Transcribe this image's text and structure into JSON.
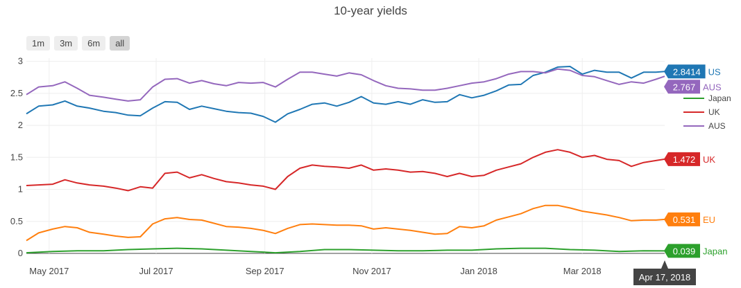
{
  "chart_data": {
    "type": "line",
    "title": "10-year yields",
    "ylim": [
      0,
      3.05
    ],
    "y_ticks": [
      "0",
      "0.5",
      "1",
      "1.5",
      "2",
      "2.5",
      "3"
    ],
    "x_range": [
      "2017-04-18",
      "2018-04-17"
    ],
    "x_ticks": [
      {
        "date": "2017-05-01",
        "label": "May 2017"
      },
      {
        "date": "2017-07-01",
        "label": "Jul 2017"
      },
      {
        "date": "2017-09-01",
        "label": "Sep 2017"
      },
      {
        "date": "2017-11-01",
        "label": "Nov 2017"
      },
      {
        "date": "2018-01-01",
        "label": "Jan 2018"
      },
      {
        "date": "2018-03-01",
        "label": "Mar 2018"
      }
    ],
    "grid": true,
    "legend": {
      "position": "right",
      "entries": [
        "Japan",
        "UK",
        "AUS"
      ]
    },
    "range_selector": [
      "1m",
      "3m",
      "6m",
      "all"
    ],
    "range_selector_active": "all",
    "hover_date": "Apr 17, 2018",
    "series": [
      {
        "name": "US",
        "color": "#1f77b4",
        "last_value": "2.8414",
        "show_in_legend": false,
        "points": [
          [
            "2017-04-18",
            2.18
          ],
          [
            "2017-04-25",
            2.3
          ],
          [
            "2017-05-03",
            2.32
          ],
          [
            "2017-05-10",
            2.38
          ],
          [
            "2017-05-17",
            2.3
          ],
          [
            "2017-05-24",
            2.27
          ],
          [
            "2017-06-01",
            2.22
          ],
          [
            "2017-06-08",
            2.2
          ],
          [
            "2017-06-15",
            2.16
          ],
          [
            "2017-06-22",
            2.15
          ],
          [
            "2017-06-29",
            2.27
          ],
          [
            "2017-07-06",
            2.37
          ],
          [
            "2017-07-13",
            2.36
          ],
          [
            "2017-07-20",
            2.25
          ],
          [
            "2017-07-27",
            2.3
          ],
          [
            "2017-08-03",
            2.26
          ],
          [
            "2017-08-10",
            2.22
          ],
          [
            "2017-08-17",
            2.2
          ],
          [
            "2017-08-24",
            2.19
          ],
          [
            "2017-08-31",
            2.14
          ],
          [
            "2017-09-07",
            2.05
          ],
          [
            "2017-09-14",
            2.18
          ],
          [
            "2017-09-21",
            2.25
          ],
          [
            "2017-09-28",
            2.33
          ],
          [
            "2017-10-05",
            2.35
          ],
          [
            "2017-10-12",
            2.3
          ],
          [
            "2017-10-19",
            2.36
          ],
          [
            "2017-10-26",
            2.45
          ],
          [
            "2017-11-02",
            2.35
          ],
          [
            "2017-11-09",
            2.33
          ],
          [
            "2017-11-16",
            2.37
          ],
          [
            "2017-11-23",
            2.33
          ],
          [
            "2017-11-30",
            2.4
          ],
          [
            "2017-12-07",
            2.36
          ],
          [
            "2017-12-14",
            2.37
          ],
          [
            "2017-12-21",
            2.48
          ],
          [
            "2017-12-28",
            2.43
          ],
          [
            "2018-01-04",
            2.47
          ],
          [
            "2018-01-11",
            2.54
          ],
          [
            "2018-01-18",
            2.63
          ],
          [
            "2018-01-25",
            2.64
          ],
          [
            "2018-02-01",
            2.78
          ],
          [
            "2018-02-08",
            2.83
          ],
          [
            "2018-02-15",
            2.91
          ],
          [
            "2018-02-22",
            2.92
          ],
          [
            "2018-03-01",
            2.8
          ],
          [
            "2018-03-08",
            2.86
          ],
          [
            "2018-03-15",
            2.83
          ],
          [
            "2018-03-22",
            2.83
          ],
          [
            "2018-03-29",
            2.74
          ],
          [
            "2018-04-05",
            2.83
          ],
          [
            "2018-04-12",
            2.83
          ],
          [
            "2018-04-17",
            2.8414
          ]
        ]
      },
      {
        "name": "AUS",
        "color": "#9467bd",
        "last_value": "2.767",
        "show_in_legend": true,
        "points": [
          [
            "2017-04-18",
            2.48
          ],
          [
            "2017-04-25",
            2.6
          ],
          [
            "2017-05-03",
            2.62
          ],
          [
            "2017-05-10",
            2.68
          ],
          [
            "2017-05-17",
            2.58
          ],
          [
            "2017-05-24",
            2.47
          ],
          [
            "2017-06-01",
            2.44
          ],
          [
            "2017-06-08",
            2.41
          ],
          [
            "2017-06-15",
            2.38
          ],
          [
            "2017-06-22",
            2.4
          ],
          [
            "2017-06-29",
            2.6
          ],
          [
            "2017-07-06",
            2.72
          ],
          [
            "2017-07-13",
            2.73
          ],
          [
            "2017-07-20",
            2.66
          ],
          [
            "2017-07-27",
            2.7
          ],
          [
            "2017-08-03",
            2.65
          ],
          [
            "2017-08-10",
            2.62
          ],
          [
            "2017-08-17",
            2.67
          ],
          [
            "2017-08-24",
            2.66
          ],
          [
            "2017-08-31",
            2.67
          ],
          [
            "2017-09-07",
            2.6
          ],
          [
            "2017-09-14",
            2.72
          ],
          [
            "2017-09-21",
            2.83
          ],
          [
            "2017-09-28",
            2.83
          ],
          [
            "2017-10-05",
            2.8
          ],
          [
            "2017-10-12",
            2.77
          ],
          [
            "2017-10-19",
            2.82
          ],
          [
            "2017-10-26",
            2.79
          ],
          [
            "2017-11-02",
            2.7
          ],
          [
            "2017-11-09",
            2.62
          ],
          [
            "2017-11-16",
            2.58
          ],
          [
            "2017-11-23",
            2.57
          ],
          [
            "2017-11-30",
            2.55
          ],
          [
            "2017-12-07",
            2.55
          ],
          [
            "2017-12-14",
            2.58
          ],
          [
            "2017-12-21",
            2.62
          ],
          [
            "2017-12-28",
            2.66
          ],
          [
            "2018-01-04",
            2.68
          ],
          [
            "2018-01-11",
            2.73
          ],
          [
            "2018-01-18",
            2.8
          ],
          [
            "2018-01-25",
            2.84
          ],
          [
            "2018-02-01",
            2.84
          ],
          [
            "2018-02-08",
            2.82
          ],
          [
            "2018-02-15",
            2.88
          ],
          [
            "2018-02-22",
            2.86
          ],
          [
            "2018-03-01",
            2.78
          ],
          [
            "2018-03-08",
            2.76
          ],
          [
            "2018-03-15",
            2.7
          ],
          [
            "2018-03-22",
            2.64
          ],
          [
            "2018-03-29",
            2.68
          ],
          [
            "2018-04-05",
            2.66
          ],
          [
            "2018-04-12",
            2.72
          ],
          [
            "2018-04-17",
            2.767
          ]
        ]
      },
      {
        "name": "UK",
        "color": "#d62728",
        "last_value": "1.472",
        "show_in_legend": true,
        "points": [
          [
            "2017-04-18",
            1.06
          ],
          [
            "2017-04-25",
            1.07
          ],
          [
            "2017-05-03",
            1.08
          ],
          [
            "2017-05-10",
            1.15
          ],
          [
            "2017-05-17",
            1.1
          ],
          [
            "2017-05-24",
            1.07
          ],
          [
            "2017-06-01",
            1.05
          ],
          [
            "2017-06-08",
            1.02
          ],
          [
            "2017-06-15",
            0.98
          ],
          [
            "2017-06-22",
            1.04
          ],
          [
            "2017-06-29",
            1.02
          ],
          [
            "2017-07-06",
            1.25
          ],
          [
            "2017-07-13",
            1.27
          ],
          [
            "2017-07-20",
            1.18
          ],
          [
            "2017-07-27",
            1.23
          ],
          [
            "2017-08-03",
            1.17
          ],
          [
            "2017-08-10",
            1.12
          ],
          [
            "2017-08-17",
            1.1
          ],
          [
            "2017-08-24",
            1.07
          ],
          [
            "2017-08-31",
            1.05
          ],
          [
            "2017-09-07",
            1.0
          ],
          [
            "2017-09-14",
            1.2
          ],
          [
            "2017-09-21",
            1.33
          ],
          [
            "2017-09-28",
            1.38
          ],
          [
            "2017-10-05",
            1.36
          ],
          [
            "2017-10-12",
            1.35
          ],
          [
            "2017-10-19",
            1.33
          ],
          [
            "2017-10-26",
            1.38
          ],
          [
            "2017-11-02",
            1.3
          ],
          [
            "2017-11-09",
            1.32
          ],
          [
            "2017-11-16",
            1.3
          ],
          [
            "2017-11-23",
            1.27
          ],
          [
            "2017-11-30",
            1.28
          ],
          [
            "2017-12-07",
            1.25
          ],
          [
            "2017-12-14",
            1.2
          ],
          [
            "2017-12-21",
            1.25
          ],
          [
            "2017-12-28",
            1.2
          ],
          [
            "2018-01-04",
            1.22
          ],
          [
            "2018-01-11",
            1.3
          ],
          [
            "2018-01-18",
            1.35
          ],
          [
            "2018-01-25",
            1.4
          ],
          [
            "2018-02-01",
            1.5
          ],
          [
            "2018-02-08",
            1.58
          ],
          [
            "2018-02-15",
            1.62
          ],
          [
            "2018-02-22",
            1.58
          ],
          [
            "2018-03-01",
            1.5
          ],
          [
            "2018-03-08",
            1.53
          ],
          [
            "2018-03-15",
            1.47
          ],
          [
            "2018-03-22",
            1.45
          ],
          [
            "2018-03-29",
            1.36
          ],
          [
            "2018-04-05",
            1.42
          ],
          [
            "2018-04-12",
            1.45
          ],
          [
            "2018-04-17",
            1.472
          ]
        ]
      },
      {
        "name": "EU",
        "color": "#ff7f0e",
        "last_value": "0.531",
        "show_in_legend": false,
        "points": [
          [
            "2017-04-18",
            0.2
          ],
          [
            "2017-04-25",
            0.32
          ],
          [
            "2017-05-03",
            0.38
          ],
          [
            "2017-05-10",
            0.42
          ],
          [
            "2017-05-17",
            0.4
          ],
          [
            "2017-05-24",
            0.33
          ],
          [
            "2017-06-01",
            0.3
          ],
          [
            "2017-06-08",
            0.27
          ],
          [
            "2017-06-15",
            0.25
          ],
          [
            "2017-06-22",
            0.26
          ],
          [
            "2017-06-29",
            0.46
          ],
          [
            "2017-07-06",
            0.54
          ],
          [
            "2017-07-13",
            0.56
          ],
          [
            "2017-07-20",
            0.53
          ],
          [
            "2017-07-27",
            0.52
          ],
          [
            "2017-08-03",
            0.47
          ],
          [
            "2017-08-10",
            0.42
          ],
          [
            "2017-08-17",
            0.41
          ],
          [
            "2017-08-24",
            0.39
          ],
          [
            "2017-08-31",
            0.36
          ],
          [
            "2017-09-07",
            0.31
          ],
          [
            "2017-09-14",
            0.39
          ],
          [
            "2017-09-21",
            0.45
          ],
          [
            "2017-09-28",
            0.46
          ],
          [
            "2017-10-05",
            0.45
          ],
          [
            "2017-10-12",
            0.44
          ],
          [
            "2017-10-19",
            0.44
          ],
          [
            "2017-10-26",
            0.43
          ],
          [
            "2017-11-02",
            0.38
          ],
          [
            "2017-11-09",
            0.4
          ],
          [
            "2017-11-16",
            0.38
          ],
          [
            "2017-11-23",
            0.36
          ],
          [
            "2017-11-30",
            0.33
          ],
          [
            "2017-12-07",
            0.3
          ],
          [
            "2017-12-14",
            0.31
          ],
          [
            "2017-12-21",
            0.42
          ],
          [
            "2017-12-28",
            0.4
          ],
          [
            "2018-01-04",
            0.43
          ],
          [
            "2018-01-11",
            0.52
          ],
          [
            "2018-01-18",
            0.57
          ],
          [
            "2018-01-25",
            0.62
          ],
          [
            "2018-02-01",
            0.7
          ],
          [
            "2018-02-08",
            0.75
          ],
          [
            "2018-02-15",
            0.75
          ],
          [
            "2018-02-22",
            0.71
          ],
          [
            "2018-03-01",
            0.66
          ],
          [
            "2018-03-08",
            0.63
          ],
          [
            "2018-03-15",
            0.6
          ],
          [
            "2018-03-22",
            0.56
          ],
          [
            "2018-03-29",
            0.51
          ],
          [
            "2018-04-05",
            0.52
          ],
          [
            "2018-04-12",
            0.52
          ],
          [
            "2018-04-17",
            0.531
          ]
        ]
      },
      {
        "name": "Japan",
        "color": "#2ca02c",
        "last_value": "0.039",
        "show_in_legend": true,
        "points": [
          [
            "2017-04-18",
            0.01
          ],
          [
            "2017-05-03",
            0.03
          ],
          [
            "2017-05-17",
            0.04
          ],
          [
            "2017-06-01",
            0.04
          ],
          [
            "2017-06-15",
            0.06
          ],
          [
            "2017-06-29",
            0.07
          ],
          [
            "2017-07-13",
            0.08
          ],
          [
            "2017-07-27",
            0.07
          ],
          [
            "2017-08-10",
            0.05
          ],
          [
            "2017-08-24",
            0.03
          ],
          [
            "2017-09-07",
            0.01
          ],
          [
            "2017-09-21",
            0.03
          ],
          [
            "2017-10-05",
            0.06
          ],
          [
            "2017-10-19",
            0.06
          ],
          [
            "2017-11-02",
            0.05
          ],
          [
            "2017-11-16",
            0.04
          ],
          [
            "2017-11-30",
            0.04
          ],
          [
            "2017-12-14",
            0.05
          ],
          [
            "2017-12-28",
            0.05
          ],
          [
            "2018-01-11",
            0.07
          ],
          [
            "2018-01-25",
            0.08
          ],
          [
            "2018-02-08",
            0.08
          ],
          [
            "2018-02-22",
            0.06
          ],
          [
            "2018-03-08",
            0.05
          ],
          [
            "2018-03-22",
            0.03
          ],
          [
            "2018-04-05",
            0.04
          ],
          [
            "2018-04-17",
            0.039
          ]
        ]
      }
    ]
  }
}
